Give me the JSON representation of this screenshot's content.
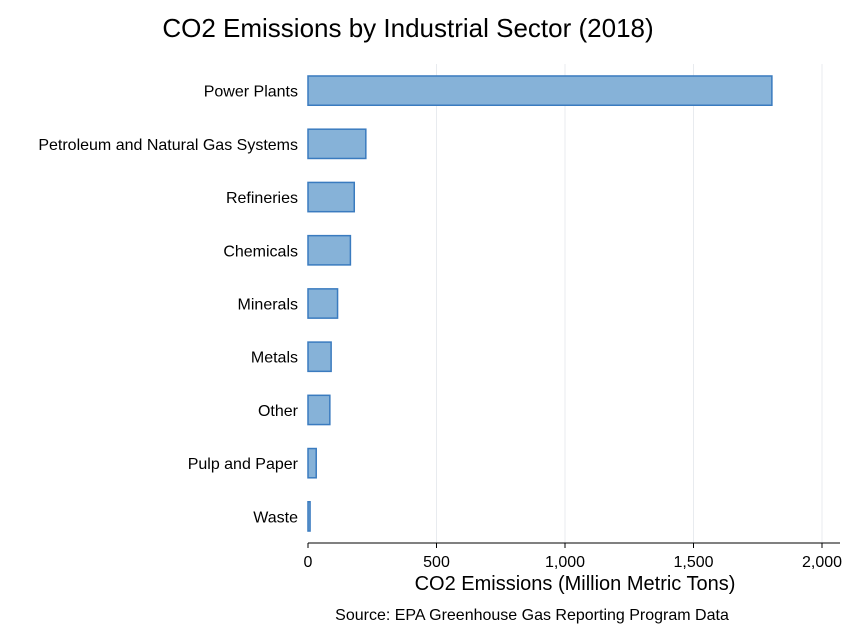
{
  "chart_data": {
    "type": "bar",
    "orientation": "horizontal",
    "title": "CO2 Emissions by Industrial Sector (2018)",
    "xlabel": "CO2 Emissions (Million Metric Tons)",
    "ylabel": "",
    "source": "Source: EPA Greenhouse Gas Reporting Program Data",
    "categories": [
      "Power Plants",
      "Petroleum and Natural Gas Systems",
      "Refineries",
      "Chemicals",
      "Minerals",
      "Metals",
      "Other",
      "Pulp and Paper",
      "Waste"
    ],
    "values": [
      1805,
      225,
      180,
      165,
      115,
      90,
      85,
      32,
      8
    ],
    "xlim": [
      0,
      2070
    ],
    "xticks": [
      0,
      500,
      1000,
      1500,
      2000
    ],
    "xtick_labels": [
      "0",
      "500",
      "1,000",
      "1,500",
      "2,000"
    ],
    "grid": true,
    "legend": "none",
    "colors": {
      "bar_fill": "#86b2d8",
      "bar_stroke": "#3a7bbf"
    }
  }
}
